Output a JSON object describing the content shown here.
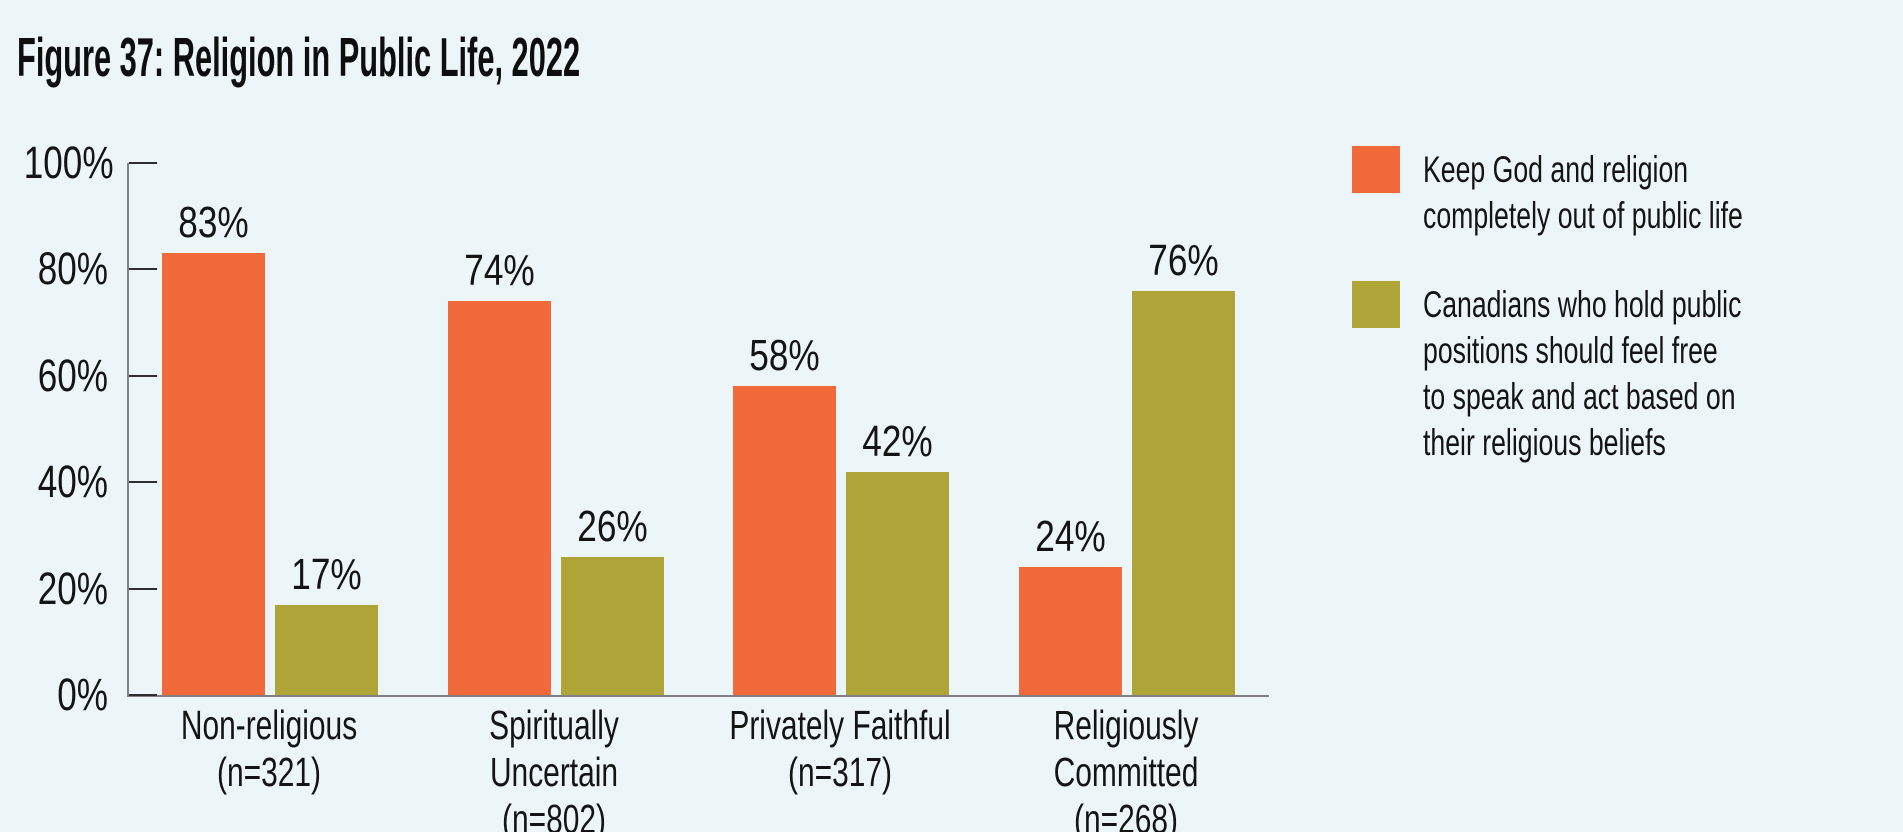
{
  "figure": {
    "title": "Figure 37: Religion in Public Life, 2022"
  },
  "colors": {
    "background": "#ECF5F8",
    "orange": "#F2693C",
    "olive": "#AFA437",
    "axis_line": "#808184",
    "tick_mark": "#2E2E2E",
    "text": "#151515"
  },
  "chart_data": {
    "type": "bar",
    "title": "Figure 37: Religion in Public Life, 2022",
    "categories": [
      "Non-religious",
      "Spiritually Uncertain",
      "Privately Faithful",
      "Religiously Committed"
    ],
    "category_n": [
      "(n=321)",
      "(n=802)",
      "(n=317)",
      "(n=268)"
    ],
    "series": [
      {
        "key": "keep-god-out",
        "name": "Keep God and religion completely out of public life",
        "color": "#F2693C",
        "values": [
          83,
          74,
          58,
          24
        ]
      },
      {
        "key": "speak-act-freely",
        "name": "Canadians who hold public positions should feel free to speak and act based on their religious beliefs",
        "color": "#AFA437",
        "values": [
          17,
          26,
          42,
          76
        ]
      }
    ],
    "value_labels": [
      "83%",
      "17%",
      "74%",
      "26%",
      "58%",
      "42%",
      "24%",
      "76%"
    ],
    "y_ticks": [
      "100%",
      "80%",
      "60%",
      "40%",
      "20%",
      "0%"
    ],
    "ylim": [
      0,
      100
    ],
    "grid": false,
    "legend_position": "right"
  },
  "legend": {
    "items": [
      {
        "key": "keep-god-out",
        "color": "#F2693C",
        "label": "Keep God and religion\ncompletely out of public life"
      },
      {
        "key": "speak-act-freely",
        "color": "#AFA437",
        "label": "Canadians who hold public\npositions should feel free\nto speak and act based on\ntheir religious beliefs"
      }
    ]
  }
}
